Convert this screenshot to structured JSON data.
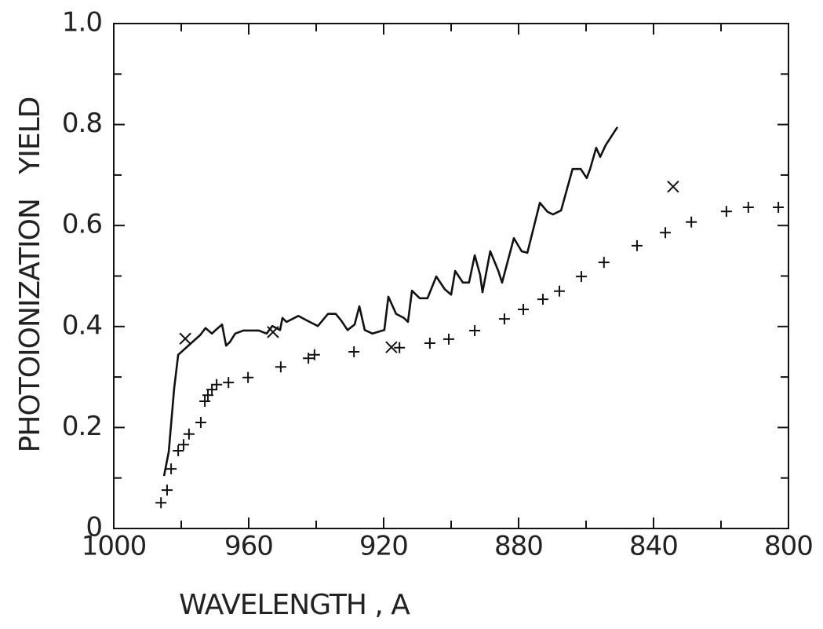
{
  "chart_data": {
    "type": "line",
    "xlabel": "WAVELENGTH , A",
    "ylabel": "PHOTOIONIZATION   YIELD",
    "xlim": [
      1000,
      800
    ],
    "ylim": [
      0,
      1
    ],
    "xticks": [
      1000,
      960,
      920,
      880,
      840,
      800
    ],
    "xticks_minor": [
      980,
      940,
      900,
      860,
      820
    ],
    "yticks": [
      0,
      0.2,
      0.4,
      0.6,
      0.8,
      {
        "value": 1,
        "label": "1.0"
      }
    ],
    "yticks_minor": [
      0.1,
      0.3,
      0.5,
      0.7,
      0.9
    ],
    "series": [
      {
        "style": "line",
        "color": "#111111",
        "x": [
          985.1,
          983.7,
          982.1,
          980.9,
          977.9,
          974.4,
          972.8,
          970.9,
          969.8,
          967.9,
          966.7,
          965.6,
          964.0,
          961.6,
          957.0,
          954.7,
          953.0,
          950.7,
          950.0,
          948.8,
          945.3,
          941.9,
          939.5,
          936.5,
          934.2,
          932.6,
          930.7,
          928.6,
          927.2,
          925.6,
          923.3,
          919.8,
          918.6,
          916.3,
          914.0,
          912.8,
          911.6,
          909.3,
          907.0,
          904.4,
          901.9,
          900.0,
          898.8,
          896.5,
          894.7,
          893.0,
          891.4,
          890.7,
          888.4,
          886.0,
          884.9,
          881.4,
          879.1,
          877.4,
          873.7,
          871.4,
          869.8,
          867.4,
          864.0,
          861.6,
          859.8,
          858.8,
          857.0,
          855.8,
          854.2,
          850.7
        ],
        "values": [
          0.104,
          0.152,
          0.277,
          0.344,
          0.362,
          0.383,
          0.397,
          0.386,
          0.393,
          0.404,
          0.362,
          0.369,
          0.386,
          0.392,
          0.392,
          0.386,
          0.401,
          0.393,
          0.417,
          0.409,
          0.421,
          0.409,
          0.401,
          0.425,
          0.425,
          0.412,
          0.393,
          0.404,
          0.44,
          0.393,
          0.386,
          0.393,
          0.459,
          0.425,
          0.417,
          0.409,
          0.471,
          0.456,
          0.456,
          0.499,
          0.474,
          0.463,
          0.51,
          0.487,
          0.487,
          0.541,
          0.502,
          0.468,
          0.549,
          0.51,
          0.487,
          0.575,
          0.549,
          0.546,
          0.645,
          0.627,
          0.622,
          0.63,
          0.712,
          0.712,
          0.694,
          0.712,
          0.754,
          0.736,
          0.759,
          0.795
        ]
      },
      {
        "style": "plus",
        "color": "#111111",
        "x": [
          986.0,
          984.2,
          983.0,
          980.9,
          979.3,
          977.7,
          974.2,
          973.0,
          972.1,
          970.9,
          969.5,
          966.0,
          960.2,
          950.5,
          942.3,
          940.5,
          928.8,
          915.3,
          906.3,
          900.7,
          893.0,
          884.2,
          878.6,
          872.8,
          867.9,
          861.4,
          854.7,
          844.9,
          836.5,
          828.8,
          818.4,
          811.9,
          803.0
        ],
        "values": [
          0.051,
          0.076,
          0.118,
          0.154,
          0.166,
          0.187,
          0.21,
          0.252,
          0.264,
          0.275,
          0.285,
          0.289,
          0.299,
          0.32,
          0.337,
          0.344,
          0.35,
          0.358,
          0.367,
          0.375,
          0.392,
          0.415,
          0.434,
          0.454,
          0.47,
          0.499,
          0.527,
          0.56,
          0.586,
          0.607,
          0.628,
          0.636,
          0.636
        ]
      },
      {
        "style": "cross",
        "color": "#111111",
        "x": [
          978.8,
          952.8,
          917.7,
          834.2
        ],
        "values": [
          0.376,
          0.389,
          0.359,
          0.677
        ]
      }
    ]
  }
}
